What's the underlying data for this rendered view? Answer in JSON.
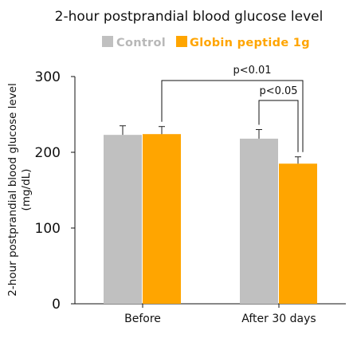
{
  "chart_data": {
    "type": "bar",
    "title": "2-hour postprandial blood glucose level",
    "ylabel_line1": "2-hour postprandial blood glucose level",
    "ylabel_line2": "(mg/dL)",
    "xlabel": "",
    "categories": [
      "Before",
      "After 30 days"
    ],
    "series": [
      {
        "name": "Control",
        "color": "#c0c0c0",
        "values": [
          223,
          218
        ],
        "errors": [
          12,
          12
        ]
      },
      {
        "name": "Globin peptide 1g",
        "color": "#ffa500",
        "values": [
          224,
          185
        ],
        "errors": [
          10,
          9
        ]
      }
    ],
    "ylim": [
      0,
      300
    ],
    "yticks": [
      "0",
      "100",
      "200",
      "300"
    ],
    "legend_position": "top",
    "grid": false,
    "annotations": [
      {
        "label": "p<0.01",
        "from": "Before / Globin peptide 1g",
        "to": "After 30 days / Globin peptide 1g"
      },
      {
        "label": "p<0.05",
        "from": "After 30 days / Control",
        "to": "After 30 days / Globin peptide 1g"
      }
    ]
  }
}
